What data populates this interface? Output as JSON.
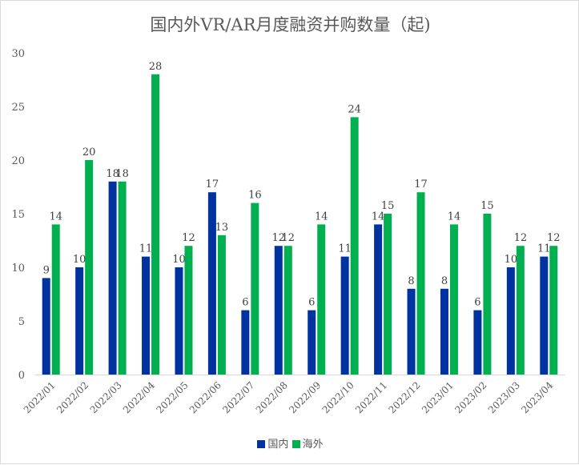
{
  "chart_data": {
    "type": "bar",
    "title": "国内外VR/AR月度融资并购数量（起)",
    "categories": [
      "2022/01",
      "2022/02",
      "2022/03",
      "2022/04",
      "2022/05",
      "2022/06",
      "2022/07",
      "2022/08",
      "2022/09",
      "2022/10",
      "2022/11",
      "2022/12",
      "2023/01",
      "2023/02",
      "2023/03",
      "2023/04"
    ],
    "series": [
      {
        "name": "国内",
        "color": "#0033a0",
        "values": [
          9,
          10,
          18,
          11,
          10,
          17,
          6,
          12,
          6,
          11,
          14,
          8,
          8,
          6,
          10,
          11
        ]
      },
      {
        "name": "海外",
        "color": "#00b050",
        "values": [
          14,
          20,
          18,
          28,
          12,
          13,
          16,
          12,
          14,
          24,
          15,
          17,
          14,
          15,
          12,
          12
        ]
      }
    ],
    "ylim": [
      0,
      30
    ],
    "yticks": [
      0,
      5,
      10,
      15,
      20,
      25,
      30
    ],
    "grid": false,
    "legend": "bottom",
    "data_labels": true
  }
}
